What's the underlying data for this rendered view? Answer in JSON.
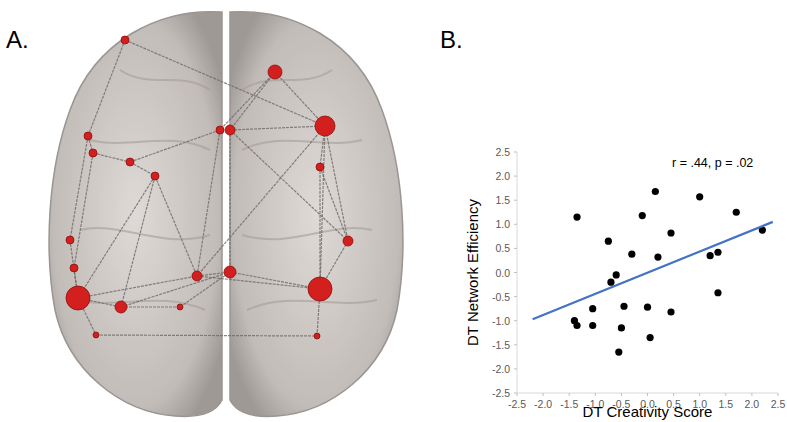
{
  "chart_data": [
    {
      "type": "brain-network",
      "title": "A."
    },
    {
      "type": "scatter",
      "title": "B.",
      "x_label": "DT Creativity Score",
      "y_label": "DT Network Efficiency",
      "annotations": [
        "r = .44, p = .02"
      ],
      "xlim": [
        -2.5,
        2.5
      ],
      "xticks": [
        -2.5,
        {
          "value": -2,
          "label": "-2.0"
        },
        -1.5,
        {
          "value": -1,
          "label": "-1.0"
        },
        -0.5,
        {
          "value": 0,
          "label": "0.0"
        },
        0.5,
        {
          "value": 1,
          "label": "1.0"
        },
        1.5,
        {
          "value": 2,
          "label": "2.0"
        },
        2.5
      ],
      "ylim": [
        -2.5,
        2.5
      ],
      "yticks": [
        -2.5,
        {
          "value": -2,
          "label": "-2.0"
        },
        -1.5,
        {
          "value": -1,
          "label": "-1.0"
        },
        -0.5,
        {
          "value": 0,
          "label": "0.0"
        },
        0.5,
        {
          "value": 1,
          "label": "1.0"
        },
        1.5,
        {
          "value": 2,
          "label": "2.0"
        },
        2.5
      ],
      "grid": false,
      "series": [
        {
          "type": "scatter",
          "color": "#000000",
          "marker": "circle",
          "x": [
            -1.35,
            0.15,
            1.0,
            1.7,
            2.2,
            -0.1,
            0.45,
            -0.75,
            -0.3,
            0.2,
            1.2,
            1.35,
            -0.6,
            -0.7,
            1.35,
            -0.45,
            0.0,
            0.45,
            -1.05,
            -1.4,
            -1.35,
            -1.05,
            -0.5,
            0.05,
            -0.55
          ],
          "values": [
            1.15,
            1.68,
            1.57,
            1.25,
            0.88,
            1.18,
            0.82,
            0.65,
            0.38,
            0.32,
            0.35,
            0.42,
            -0.05,
            -0.2,
            -0.42,
            -0.7,
            -0.72,
            -0.82,
            -0.75,
            -1.0,
            -1.1,
            -1.1,
            -1.15,
            -1.35,
            -1.65
          ]
        },
        {
          "type": "line",
          "color": "#4472c4",
          "line_style": "solid",
          "x": [
            -2.2,
            2.4
          ],
          "values": [
            -0.97,
            1.05
          ]
        }
      ]
    }
  ]
}
